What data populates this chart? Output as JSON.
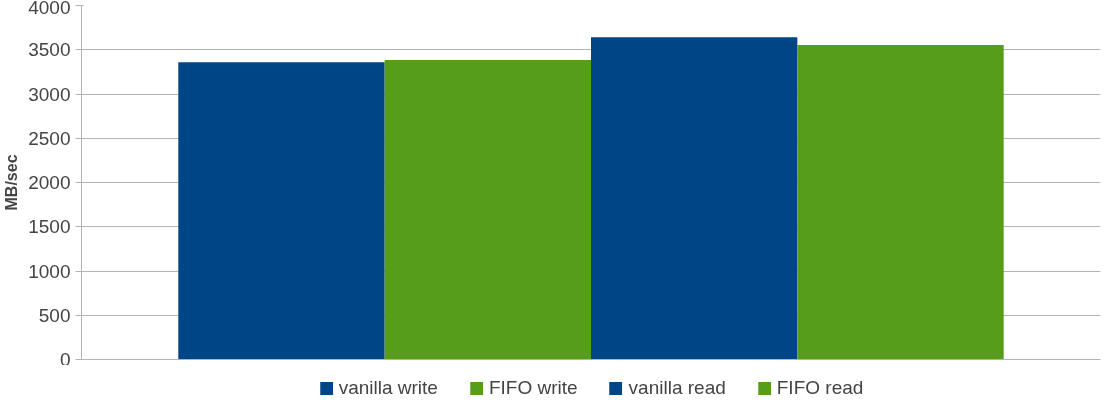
{
  "chart_data": {
    "type": "bar",
    "ylabel": "MB/sec",
    "categories": [
      null
    ],
    "series": [
      {
        "name": "vanilla write",
        "color": "#004586",
        "values": [
          3360
        ]
      },
      {
        "name": "FIFO write",
        "color": "#579d1c",
        "values": [
          3385
        ]
      },
      {
        "name": "vanilla read",
        "color": "#004586",
        "values": [
          3640
        ]
      },
      {
        "name": "FIFO read",
        "color": "#579d1c",
        "values": [
          3555
        ]
      }
    ],
    "ylim": [
      0,
      4000
    ],
    "yticks": [
      0,
      500,
      1000,
      1500,
      2000,
      2500,
      3000,
      3500,
      4000
    ],
    "grid": "y",
    "legend": "bottom",
    "tick_labels": "y"
  }
}
